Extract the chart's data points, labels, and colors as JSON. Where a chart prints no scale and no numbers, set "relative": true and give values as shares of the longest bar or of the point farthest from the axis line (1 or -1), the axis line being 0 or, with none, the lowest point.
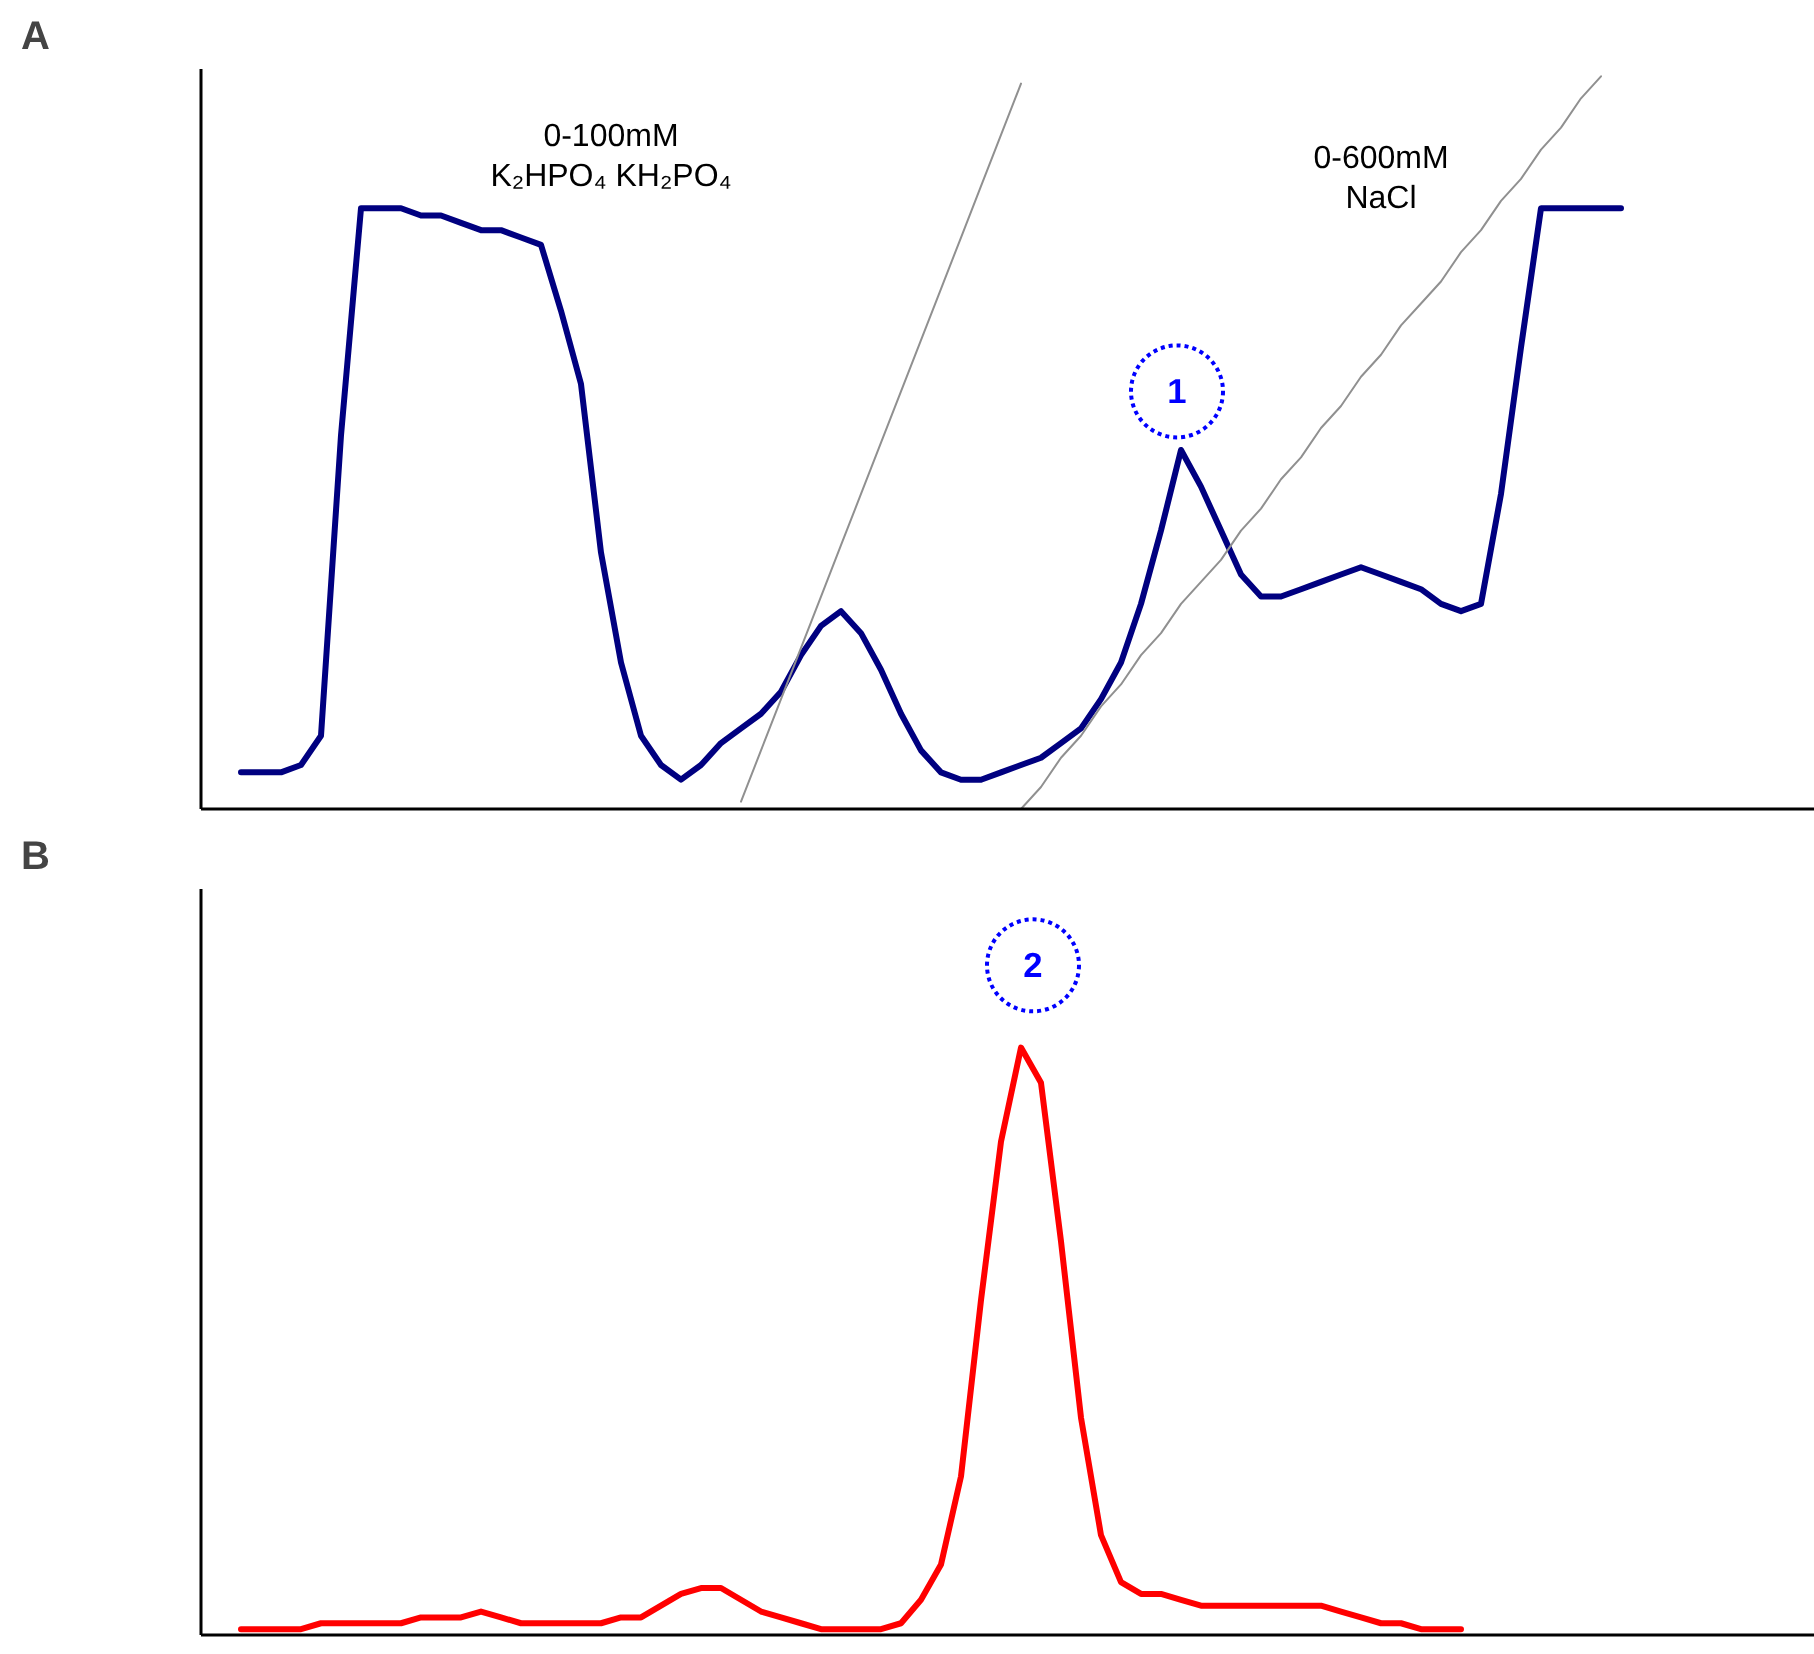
{
  "chart_data": [
    {
      "type": "line",
      "title": "A",
      "relative": true,
      "categories": [
        null,
        null,
        null,
        null,
        null,
        null,
        null,
        null,
        null,
        null,
        null,
        null,
        null,
        null,
        null,
        null,
        null,
        null,
        null,
        null,
        null,
        null,
        null,
        null,
        null,
        null,
        null,
        null,
        null,
        null,
        null,
        null,
        null,
        null,
        null,
        null,
        null,
        null,
        null,
        null,
        null,
        null,
        null,
        null,
        null,
        null,
        null,
        null,
        null,
        null,
        null,
        null,
        null,
        null,
        null,
        null,
        null,
        null,
        null,
        null,
        null,
        null,
        null,
        null,
        null,
        null,
        null,
        null,
        null,
        null
      ],
      "series": [
        {
          "color": "#000080",
          "values": [
            0.05,
            0.05,
            0.05,
            0.06,
            0.1,
            0.51,
            0.82,
            0.82,
            0.82,
            0.81,
            0.81,
            0.8,
            0.79,
            0.79,
            0.78,
            0.77,
            0.68,
            0.58,
            0.35,
            0.2,
            0.1,
            0.06,
            0.04,
            0.06,
            0.09,
            0.11,
            0.13,
            0.16,
            0.21,
            0.25,
            0.27,
            0.24,
            0.19,
            0.13,
            0.08,
            0.05,
            0.04,
            0.04,
            0.05,
            0.06,
            0.07,
            0.09,
            0.11,
            0.15,
            0.2,
            0.28,
            0.38,
            0.49,
            0.44,
            0.38,
            0.32,
            0.29,
            0.29,
            0.3,
            0.31,
            0.32,
            0.33,
            0.32,
            0.31,
            0.3,
            0.28,
            0.27,
            0.28,
            0.43,
            0.63,
            0.82,
            0.82,
            0.82,
            0.82,
            0.82
          ]
        },
        {
          "color": "#909090",
          "values": [
            null,
            null,
            null,
            null,
            null,
            null,
            null,
            null,
            null,
            null,
            null,
            null,
            null,
            null,
            null,
            null,
            null,
            null,
            null,
            null,
            null,
            null,
            null,
            null,
            null,
            0.01,
            0.08,
            0.15,
            0.22,
            0.29,
            0.36,
            0.43,
            0.5,
            0.57,
            0.64,
            0.71,
            0.78,
            0.85,
            0.92,
            0.99,
            null,
            null,
            null,
            null,
            null,
            null,
            null,
            null,
            null,
            null,
            null,
            null,
            null,
            null,
            null,
            null,
            null,
            null,
            null,
            null,
            null,
            null,
            null,
            null,
            null,
            null,
            null,
            null,
            null,
            null
          ]
        },
        {
          "color": "#909090",
          "values": [
            null,
            null,
            null,
            null,
            null,
            null,
            null,
            null,
            null,
            null,
            null,
            null,
            null,
            null,
            null,
            null,
            null,
            null,
            null,
            null,
            null,
            null,
            null,
            null,
            null,
            null,
            null,
            null,
            null,
            null,
            null,
            null,
            null,
            null,
            null,
            null,
            null,
            null,
            null,
            0.0,
            0.03,
            0.07,
            0.1,
            0.14,
            0.17,
            0.21,
            0.24,
            0.28,
            0.31,
            0.34,
            0.38,
            0.41,
            0.45,
            0.48,
            0.52,
            0.55,
            0.59,
            0.62,
            0.66,
            0.69,
            0.72,
            0.76,
            0.79,
            0.83,
            0.86,
            0.9,
            0.93,
            0.97,
            1.0,
            null
          ]
        }
      ],
      "annotations": [
        "0-100mM\nK₂HPO₄ KH₂PO₄",
        "0-600mM\nNaCl",
        "1"
      ]
    },
    {
      "type": "line",
      "title": "B",
      "relative": true,
      "categories": [
        null,
        null,
        null,
        null,
        null,
        null,
        null,
        null,
        null,
        null,
        null,
        null,
        null,
        null,
        null,
        null,
        null,
        null,
        null,
        null,
        null,
        null,
        null,
        null,
        null,
        null,
        null,
        null,
        null,
        null,
        null,
        null,
        null,
        null,
        null,
        null,
        null,
        null,
        null,
        null,
        null,
        null,
        null,
        null,
        null,
        null,
        null,
        null,
        null,
        null,
        null,
        null,
        null,
        null,
        null,
        null,
        null,
        null,
        null,
        null,
        null,
        null
      ],
      "series": [
        {
          "color": "#ff0000",
          "values": [
            0.01,
            0.01,
            0.01,
            0.01,
            0.02,
            0.02,
            0.02,
            0.02,
            0.02,
            0.03,
            0.03,
            0.03,
            0.04,
            0.03,
            0.02,
            0.02,
            0.02,
            0.02,
            0.02,
            0.03,
            0.03,
            0.05,
            0.07,
            0.08,
            0.08,
            0.06,
            0.04,
            0.03,
            0.02,
            0.01,
            0.01,
            0.01,
            0.01,
            0.02,
            0.06,
            0.12,
            0.27,
            0.57,
            0.84,
            1.0,
            0.94,
            0.67,
            0.37,
            0.17,
            0.09,
            0.07,
            0.07,
            0.06,
            0.05,
            0.05,
            0.05,
            0.05,
            0.05,
            0.05,
            0.05,
            0.04,
            0.03,
            0.02,
            0.02,
            0.01,
            0.01,
            0.01
          ]
        }
      ],
      "annotations": [
        "2"
      ]
    }
  ]
}
